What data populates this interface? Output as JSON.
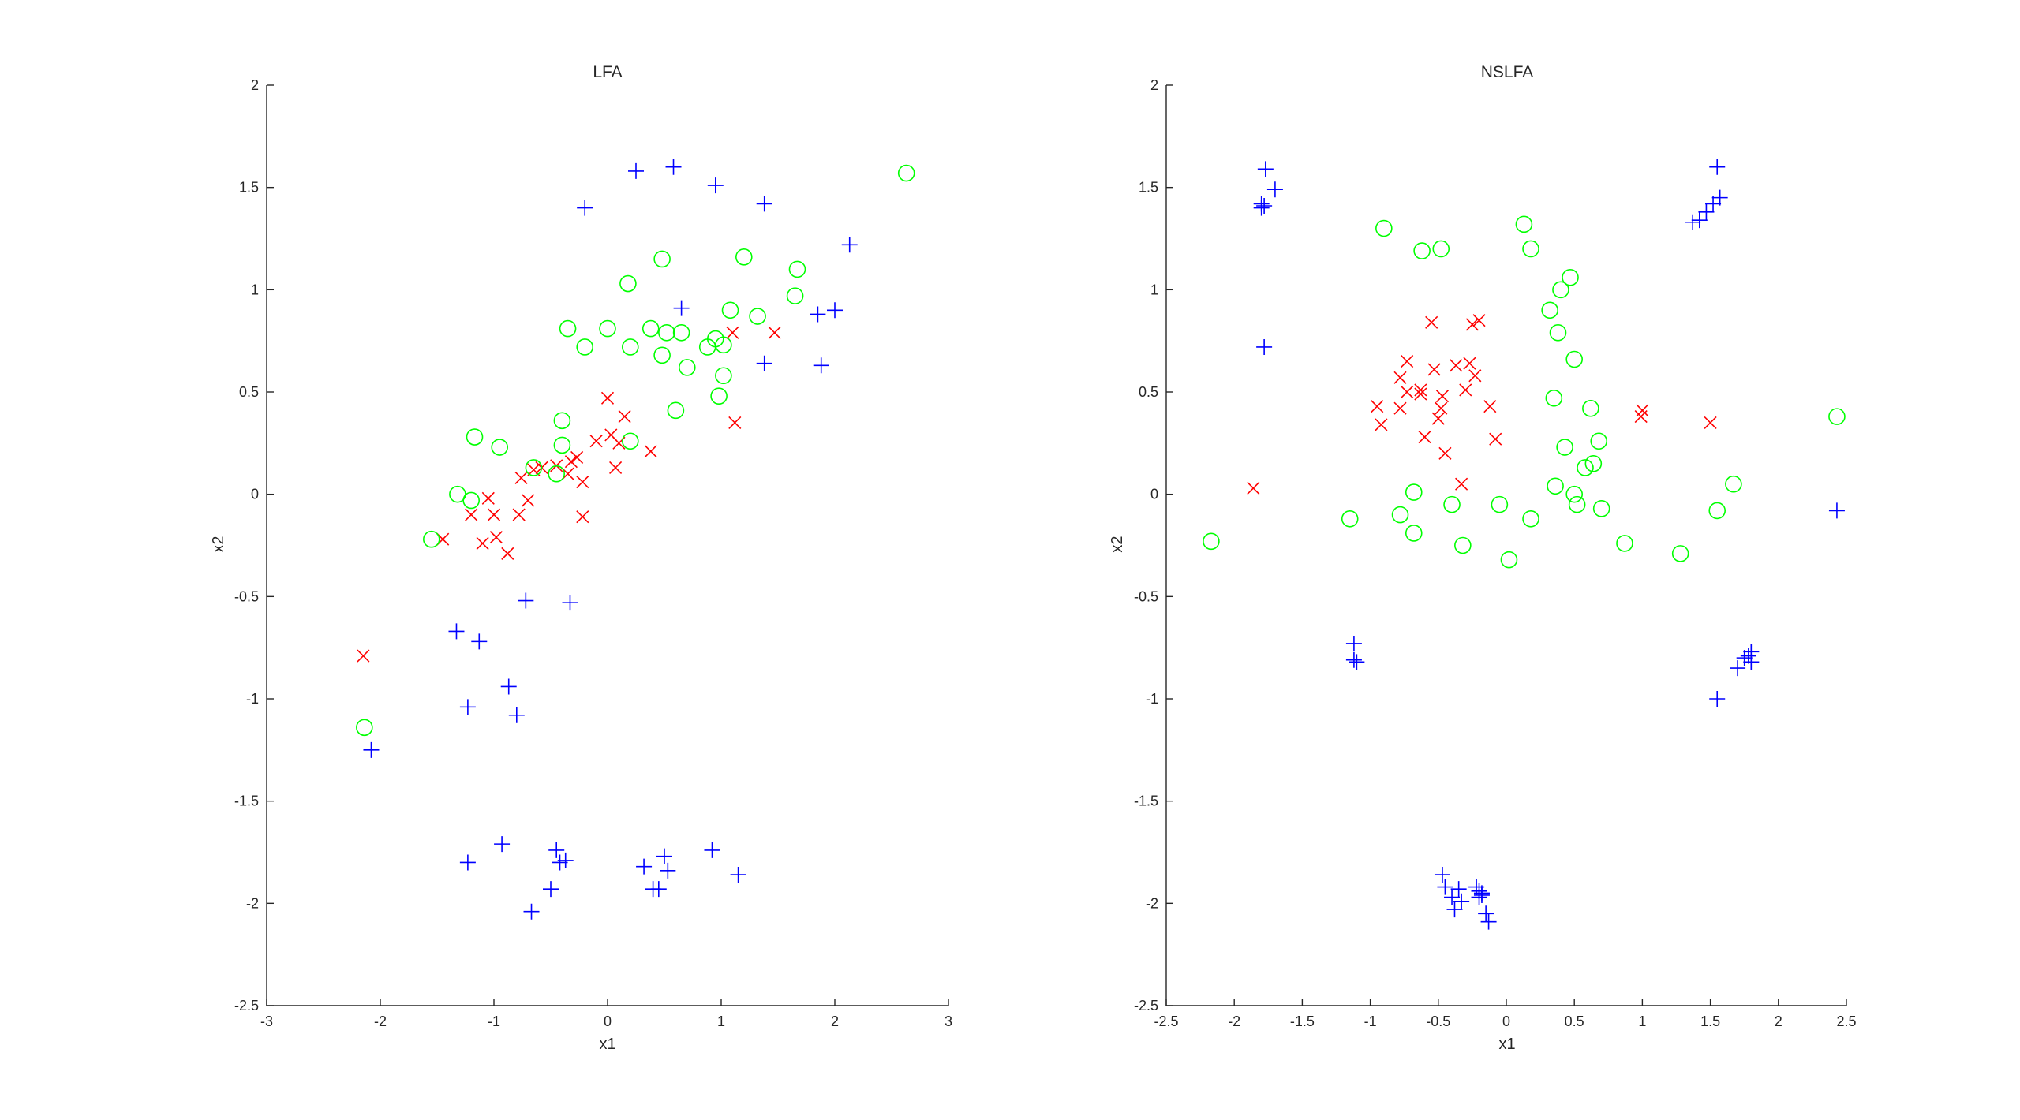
{
  "chart_data": [
    {
      "type": "scatter",
      "title": "LFA",
      "xlabel": "x1",
      "ylabel": "x2",
      "xlim": [
        -3,
        3
      ],
      "ylim": [
        -2.5,
        2
      ],
      "xticks": [
        -3,
        -2,
        -1,
        0,
        1,
        2,
        3
      ],
      "yticks": [
        -2.5,
        -2,
        -1.5,
        -1,
        -0.5,
        0,
        0.5,
        1,
        1.5,
        2
      ],
      "xtick_labels": [
        "-3",
        "-2",
        "-1",
        "0",
        "1",
        "2",
        "3"
      ],
      "ytick_labels": [
        "-2.5",
        "-2",
        "-1.5",
        "-1",
        "-0.5",
        "0",
        "0.5",
        "1",
        "1.5",
        "2"
      ],
      "grid": false,
      "series": [
        {
          "marker": "x",
          "color": "#ff0000",
          "points": [
            [
              -2.15,
              -0.79
            ],
            [
              -1.45,
              -0.22
            ],
            [
              -1.2,
              -0.1
            ],
            [
              -1.1,
              -0.24
            ],
            [
              -1.05,
              -0.02
            ],
            [
              -1.0,
              -0.1
            ],
            [
              -0.98,
              -0.21
            ],
            [
              -0.88,
              -0.29
            ],
            [
              -0.78,
              -0.1
            ],
            [
              -0.76,
              0.08
            ],
            [
              -0.7,
              -0.03
            ],
            [
              -0.65,
              0.12
            ],
            [
              -0.58,
              0.13
            ],
            [
              -0.45,
              0.14
            ],
            [
              -0.35,
              0.1
            ],
            [
              -0.32,
              0.16
            ],
            [
              -0.27,
              0.18
            ],
            [
              -0.22,
              0.06
            ],
            [
              -0.22,
              -0.11
            ],
            [
              -0.1,
              0.26
            ],
            [
              0.0,
              0.47
            ],
            [
              0.03,
              0.29
            ],
            [
              0.07,
              0.13
            ],
            [
              0.1,
              0.25
            ],
            [
              0.15,
              0.38
            ],
            [
              0.38,
              0.21
            ],
            [
              1.1,
              0.79
            ],
            [
              1.12,
              0.35
            ],
            [
              1.47,
              0.79
            ]
          ]
        },
        {
          "marker": "o",
          "color": "#00ff00",
          "points": [
            [
              2.63,
              1.57
            ],
            [
              -2.14,
              -1.14
            ],
            [
              -1.55,
              -0.22
            ],
            [
              -1.32,
              0.0
            ],
            [
              -1.2,
              -0.03
            ],
            [
              -1.17,
              0.28
            ],
            [
              -0.95,
              0.23
            ],
            [
              -0.65,
              0.13
            ],
            [
              -0.45,
              0.1
            ],
            [
              -0.4,
              0.24
            ],
            [
              -0.4,
              0.36
            ],
            [
              -0.35,
              0.81
            ],
            [
              -0.2,
              0.72
            ],
            [
              0.0,
              0.81
            ],
            [
              0.18,
              1.03
            ],
            [
              0.2,
              0.72
            ],
            [
              0.2,
              0.26
            ],
            [
              0.38,
              0.81
            ],
            [
              0.48,
              1.15
            ],
            [
              0.48,
              0.68
            ],
            [
              0.52,
              0.79
            ],
            [
              0.6,
              0.41
            ],
            [
              0.65,
              0.79
            ],
            [
              0.7,
              0.62
            ],
            [
              0.88,
              0.72
            ],
            [
              0.95,
              0.76
            ],
            [
              0.98,
              0.48
            ],
            [
              1.02,
              0.58
            ],
            [
              1.02,
              0.73
            ],
            [
              1.08,
              0.9
            ],
            [
              1.2,
              1.16
            ],
            [
              1.32,
              0.87
            ],
            [
              1.65,
              0.97
            ],
            [
              1.67,
              1.1
            ]
          ]
        },
        {
          "marker": "+",
          "color": "#0000ff",
          "points": [
            [
              0.58,
              1.6
            ],
            [
              0.25,
              1.58
            ],
            [
              0.95,
              1.51
            ],
            [
              1.38,
              1.42
            ],
            [
              -0.2,
              1.4
            ],
            [
              2.13,
              1.22
            ],
            [
              0.65,
              0.91
            ],
            [
              1.85,
              0.88
            ],
            [
              2.0,
              0.9
            ],
            [
              1.38,
              0.64
            ],
            [
              1.88,
              0.63
            ],
            [
              -0.72,
              -0.52
            ],
            [
              -0.33,
              -0.53
            ],
            [
              -1.33,
              -0.67
            ],
            [
              -1.13,
              -0.72
            ],
            [
              -0.87,
              -0.94
            ],
            [
              -1.23,
              -1.04
            ],
            [
              -0.8,
              -1.08
            ],
            [
              -2.08,
              -1.25
            ],
            [
              -0.93,
              -1.71
            ],
            [
              -1.23,
              -1.8
            ],
            [
              -0.45,
              -1.74
            ],
            [
              -0.42,
              -1.8
            ],
            [
              -0.37,
              -1.79
            ],
            [
              -0.5,
              -1.93
            ],
            [
              -0.67,
              -2.04
            ],
            [
              0.32,
              -1.82
            ],
            [
              0.5,
              -1.77
            ],
            [
              0.53,
              -1.84
            ],
            [
              0.4,
              -1.93
            ],
            [
              0.45,
              -1.93
            ],
            [
              0.92,
              -1.74
            ],
            [
              1.15,
              -1.86
            ]
          ]
        }
      ]
    },
    {
      "type": "scatter",
      "title": "NSLFA",
      "xlabel": "x1",
      "ylabel": "x2",
      "xlim": [
        -2.5,
        2.5
      ],
      "ylim": [
        -2.5,
        2
      ],
      "xticks": [
        -2.5,
        -2,
        -1.5,
        -1,
        -0.5,
        0,
        0.5,
        1,
        1.5,
        2,
        2.5
      ],
      "yticks": [
        -2.5,
        -2,
        -1.5,
        -1,
        -0.5,
        0,
        0.5,
        1,
        1.5,
        2
      ],
      "xtick_labels": [
        "-2.5",
        "-2",
        "-1.5",
        "-1",
        "-0.5",
        "0",
        "0.5",
        "1",
        "1.5",
        "2",
        "2.5"
      ],
      "ytick_labels": [
        "-2.5",
        "-2",
        "-1.5",
        "-1",
        "-0.5",
        "0",
        "0.5",
        "1",
        "1.5",
        "2"
      ],
      "grid": false,
      "series": [
        {
          "marker": "x",
          "color": "#ff0000",
          "points": [
            [
              -1.86,
              0.03
            ],
            [
              -0.95,
              0.43
            ],
            [
              -0.92,
              0.34
            ],
            [
              -0.78,
              0.42
            ],
            [
              -0.78,
              0.57
            ],
            [
              -0.73,
              0.65
            ],
            [
              -0.73,
              0.5
            ],
            [
              -0.63,
              0.51
            ],
            [
              -0.63,
              0.49
            ],
            [
              -0.6,
              0.28
            ],
            [
              -0.55,
              0.84
            ],
            [
              -0.53,
              0.61
            ],
            [
              -0.5,
              0.37
            ],
            [
              -0.48,
              0.42
            ],
            [
              -0.47,
              0.48
            ],
            [
              -0.45,
              0.2
            ],
            [
              -0.37,
              0.63
            ],
            [
              -0.33,
              0.05
            ],
            [
              -0.3,
              0.51
            ],
            [
              -0.27,
              0.64
            ],
            [
              -0.25,
              0.83
            ],
            [
              -0.23,
              0.58
            ],
            [
              -0.2,
              0.85
            ],
            [
              -0.12,
              0.43
            ],
            [
              -0.08,
              0.27
            ],
            [
              0.99,
              0.38
            ],
            [
              1.0,
              0.41
            ],
            [
              1.5,
              0.35
            ]
          ]
        },
        {
          "marker": "o",
          "color": "#00ff00",
          "points": [
            [
              -2.17,
              -0.23
            ],
            [
              -1.15,
              -0.12
            ],
            [
              -0.9,
              1.3
            ],
            [
              -0.78,
              -0.1
            ],
            [
              -0.68,
              0.01
            ],
            [
              -0.68,
              -0.19
            ],
            [
              -0.62,
              1.19
            ],
            [
              -0.48,
              1.2
            ],
            [
              -0.4,
              -0.05
            ],
            [
              -0.32,
              -0.25
            ],
            [
              -0.05,
              -0.05
            ],
            [
              0.02,
              -0.32
            ],
            [
              0.13,
              1.32
            ],
            [
              0.18,
              1.2
            ],
            [
              0.18,
              -0.12
            ],
            [
              0.32,
              0.9
            ],
            [
              0.35,
              0.47
            ],
            [
              0.36,
              0.04
            ],
            [
              0.38,
              0.79
            ],
            [
              0.4,
              1.0
            ],
            [
              0.43,
              0.23
            ],
            [
              0.47,
              1.06
            ],
            [
              0.5,
              0.66
            ],
            [
              0.5,
              0.0
            ],
            [
              0.52,
              -0.05
            ],
            [
              0.58,
              0.13
            ],
            [
              0.62,
              0.42
            ],
            [
              0.64,
              0.15
            ],
            [
              0.68,
              0.26
            ],
            [
              0.7,
              -0.07
            ],
            [
              0.87,
              -0.24
            ],
            [
              1.28,
              -0.29
            ],
            [
              1.55,
              -0.08
            ],
            [
              1.67,
              0.05
            ],
            [
              2.43,
              0.38
            ]
          ]
        },
        {
          "marker": "+",
          "color": "#0000ff",
          "points": [
            [
              -1.77,
              1.59
            ],
            [
              -1.8,
              1.42
            ],
            [
              -1.78,
              1.41
            ],
            [
              -1.8,
              1.4
            ],
            [
              -1.7,
              1.49
            ],
            [
              -1.78,
              0.72
            ],
            [
              1.55,
              1.6
            ],
            [
              1.57,
              1.45
            ],
            [
              1.52,
              1.42
            ],
            [
              1.47,
              1.38
            ],
            [
              1.42,
              1.34
            ],
            [
              1.37,
              1.33
            ],
            [
              -1.12,
              -0.73
            ],
            [
              -1.12,
              -0.81
            ],
            [
              -1.1,
              -0.82
            ],
            [
              1.55,
              -1.0
            ],
            [
              1.7,
              -0.85
            ],
            [
              1.75,
              -0.8
            ],
            [
              1.78,
              -0.79
            ],
            [
              1.8,
              -0.77
            ],
            [
              1.8,
              -0.82
            ],
            [
              2.43,
              -0.08
            ],
            [
              -0.47,
              -1.86
            ],
            [
              -0.45,
              -1.92
            ],
            [
              -0.4,
              -1.97
            ],
            [
              -0.38,
              -2.03
            ],
            [
              -0.35,
              -1.93
            ],
            [
              -0.33,
              -1.99
            ],
            [
              -0.22,
              -1.92
            ],
            [
              -0.2,
              -1.94
            ],
            [
              -0.18,
              -1.95
            ],
            [
              -0.2,
              -1.97
            ],
            [
              -0.15,
              -2.05
            ],
            [
              -0.13,
              -2.09
            ],
            [
              -0.18,
              -1.96
            ]
          ]
        }
      ]
    }
  ]
}
